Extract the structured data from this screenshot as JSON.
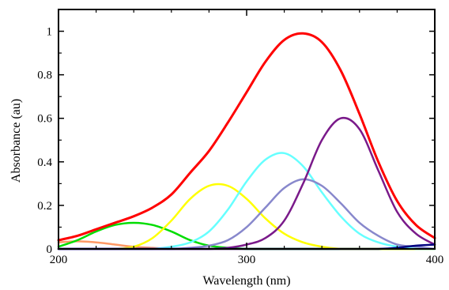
{
  "chart_data": {
    "type": "line",
    "title": "",
    "xlabel": "Wavelength (nm)",
    "ylabel": "Absorbance (au)",
    "xlim": [
      200,
      400
    ],
    "ylim": [
      0,
      1.1
    ],
    "grid": false,
    "legend": "none",
    "x_ticks": [
      200,
      300,
      400
    ],
    "x_tick_labels": [
      "200",
      "300",
      "400"
    ],
    "y_ticks": [
      0,
      0.2,
      0.4,
      0.6,
      0.8,
      1
    ],
    "y_tick_labels": [
      "0",
      "0.2",
      "0.4",
      "0.6",
      "0.8",
      "1"
    ],
    "x": [
      200,
      210,
      220,
      230,
      240,
      250,
      260,
      270,
      280,
      290,
      300,
      310,
      320,
      330,
      340,
      350,
      360,
      370,
      380,
      390,
      400
    ],
    "series": [
      {
        "color": "#ff0000",
        "values": [
          0.04,
          0.06,
          0.09,
          0.12,
          0.15,
          0.19,
          0.25,
          0.35,
          0.45,
          0.58,
          0.72,
          0.86,
          0.96,
          0.99,
          0.95,
          0.82,
          0.62,
          0.4,
          0.22,
          0.11,
          0.05
        ]
      },
      {
        "color": "#ff9966",
        "values": [
          0.03,
          0.035,
          0.03,
          0.02,
          0.01,
          0.005,
          0,
          0,
          0,
          0,
          0,
          0,
          0,
          0,
          0,
          0,
          0,
          0,
          0,
          0,
          0
        ]
      },
      {
        "color": "#00dd00",
        "values": [
          0.01,
          0.04,
          0.08,
          0.11,
          0.12,
          0.11,
          0.08,
          0.04,
          0.015,
          0.005,
          0,
          0,
          0,
          0,
          0,
          0,
          0,
          0,
          0,
          0,
          0
        ]
      },
      {
        "color": "#ffff00",
        "values": [
          0,
          0,
          0,
          0,
          0.01,
          0.05,
          0.13,
          0.23,
          0.29,
          0.29,
          0.23,
          0.14,
          0.07,
          0.03,
          0.01,
          0,
          0,
          0,
          0,
          0,
          0
        ]
      },
      {
        "color": "#66ffff",
        "values": [
          0,
          0,
          0,
          0,
          0,
          0,
          0.01,
          0.03,
          0.08,
          0.18,
          0.31,
          0.41,
          0.44,
          0.38,
          0.26,
          0.15,
          0.07,
          0.03,
          0.01,
          0,
          0
        ]
      },
      {
        "color": "#8888cc",
        "values": [
          0,
          0,
          0,
          0,
          0,
          0,
          0,
          0.005,
          0.015,
          0.04,
          0.1,
          0.19,
          0.28,
          0.32,
          0.29,
          0.21,
          0.12,
          0.06,
          0.02,
          0.01,
          0
        ]
      },
      {
        "color": "#7a1a8a",
        "values": [
          0,
          0,
          0,
          0,
          0,
          0,
          0,
          0,
          0,
          0.005,
          0.02,
          0.05,
          0.13,
          0.3,
          0.5,
          0.6,
          0.55,
          0.36,
          0.17,
          0.07,
          0.02
        ]
      },
      {
        "color": "#000080",
        "values": [
          0,
          0,
          0,
          0,
          0,
          0,
          0,
          0,
          0,
          0,
          0,
          0,
          0,
          0,
          0,
          0,
          0,
          0,
          0.005,
          0.015,
          0.02
        ]
      }
    ]
  }
}
